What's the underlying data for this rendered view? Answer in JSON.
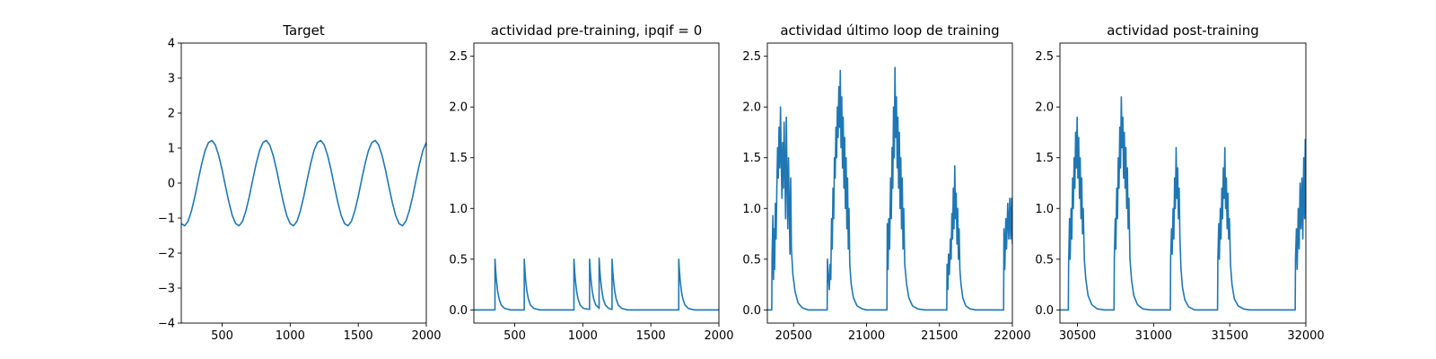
{
  "chart_data": [
    {
      "type": "line",
      "title": "Target",
      "color": "#1f77b4",
      "xlim": [
        200,
        2000
      ],
      "ylim": [
        -4,
        4
      ],
      "xticks": [
        500,
        1000,
        1500,
        2000
      ],
      "yticks": [
        {
          "value": -4,
          "label": "−4"
        },
        {
          "value": -3,
          "label": "−3"
        },
        {
          "value": -2,
          "label": "−2"
        },
        {
          "value": -1,
          "label": "−1"
        },
        0,
        1,
        2,
        3,
        4
      ],
      "x": [
        200,
        225,
        250,
        275,
        300,
        325,
        350,
        375,
        400,
        425,
        450,
        475,
        500,
        525,
        550,
        575,
        600,
        625,
        650,
        675,
        700,
        725,
        750,
        775,
        800,
        825,
        850,
        875,
        900,
        925,
        950,
        975,
        1000,
        1025,
        1050,
        1075,
        1100,
        1125,
        1150,
        1175,
        1200,
        1225,
        1250,
        1275,
        1300,
        1325,
        1350,
        1375,
        1400,
        1425,
        1450,
        1475,
        1500,
        1525,
        1550,
        1575,
        1600,
        1625,
        1650,
        1675,
        1700,
        1725,
        1750,
        1775,
        1800,
        1825,
        1850,
        1875,
        1900,
        1925,
        1950,
        1975,
        2000
      ],
      "values": [
        -1.16,
        -1.22,
        -1.09,
        -0.79,
        -0.38,
        0.1,
        0.55,
        0.93,
        1.16,
        1.22,
        1.09,
        0.79,
        0.38,
        -0.1,
        -0.55,
        -0.93,
        -1.16,
        -1.22,
        -1.09,
        -0.79,
        -0.38,
        0.1,
        0.55,
        0.93,
        1.16,
        1.22,
        1.09,
        0.79,
        0.38,
        -0.1,
        -0.55,
        -0.93,
        -1.16,
        -1.22,
        -1.09,
        -0.79,
        -0.38,
        0.1,
        0.55,
        0.93,
        1.16,
        1.22,
        1.09,
        0.79,
        0.38,
        -0.1,
        -0.55,
        -0.93,
        -1.16,
        -1.22,
        -1.09,
        -0.79,
        -0.38,
        0.1,
        0.55,
        0.93,
        1.16,
        1.22,
        1.09,
        0.79,
        0.38,
        -0.1,
        -0.55,
        -0.93,
        -1.16,
        -1.22,
        -1.09,
        -0.79,
        -0.38,
        0.1,
        0.55,
        0.93,
        1.16
      ]
    },
    {
      "type": "line",
      "title": "actividad pre-training, ipqif = 0",
      "color": "#1f77b4",
      "xlim": [
        200,
        2000
      ],
      "ylim": [
        -0.13,
        2.63
      ],
      "xticks": [
        500,
        1000,
        1500,
        2000
      ],
      "yticks": [
        {
          "value": 0,
          "label": "0.0"
        },
        0.5,
        {
          "value": 1,
          "label": "1.0"
        },
        1.5,
        {
          "value": 2,
          "label": "2.0"
        },
        2.5
      ],
      "x": [
        200,
        355,
        355,
        360,
        365,
        375,
        385,
        400,
        425,
        470,
        570,
        570,
        575,
        580,
        590,
        600,
        615,
        640,
        685,
        935,
        935,
        940,
        945,
        955,
        965,
        980,
        1005,
        1050,
        1050,
        1055,
        1060,
        1070,
        1080,
        1095,
        1120,
        1120,
        1125,
        1130,
        1140,
        1150,
        1165,
        1190,
        1215,
        1215,
        1220,
        1225,
        1235,
        1245,
        1260,
        1285,
        1330,
        1705,
        1705,
        1710,
        1715,
        1725,
        1735,
        1750,
        1775,
        1820,
        2000
      ],
      "values": [
        0,
        0,
        0.5,
        0.39,
        0.3,
        0.18,
        0.11,
        0.05,
        0.015,
        0,
        0,
        0.5,
        0.39,
        0.3,
        0.18,
        0.11,
        0.05,
        0.015,
        0,
        0,
        0.5,
        0.39,
        0.3,
        0.18,
        0.11,
        0.05,
        0.015,
        0.005,
        0.5,
        0.39,
        0.3,
        0.18,
        0.11,
        0.05,
        0.015,
        0.51,
        0.4,
        0.31,
        0.19,
        0.11,
        0.05,
        0.015,
        0.005,
        0.5,
        0.39,
        0.3,
        0.18,
        0.11,
        0.05,
        0.015,
        0,
        0,
        0.5,
        0.39,
        0.3,
        0.18,
        0.11,
        0.05,
        0.015,
        0,
        0
      ]
    },
    {
      "type": "line",
      "title": "actividad último loop de training",
      "color": "#1f77b4",
      "xlim": [
        20320,
        22000
      ],
      "ylim": [
        -0.13,
        2.63
      ],
      "xticks": [
        20500,
        21000,
        21500,
        22000
      ],
      "yticks": [
        {
          "value": 0,
          "label": "0.0"
        },
        0.5,
        {
          "value": 1,
          "label": "1.0"
        },
        1.5,
        {
          "value": 2,
          "label": "2.0"
        },
        2.5
      ],
      "x": [
        20320,
        20350,
        20352,
        20358,
        20362,
        20366,
        20370,
        20375,
        20380,
        20385,
        20390,
        20395,
        20400,
        20405,
        20410,
        20415,
        20420,
        20425,
        20430,
        20435,
        20440,
        20445,
        20450,
        20455,
        20460,
        20465,
        20470,
        20475,
        20480,
        20485,
        20495,
        20510,
        20530,
        20560,
        20600,
        20730,
        20732,
        20738,
        20745,
        20750,
        20755,
        20760,
        20765,
        20770,
        20775,
        20780,
        20785,
        20790,
        20795,
        20800,
        20805,
        20810,
        20815,
        20820,
        20825,
        20830,
        20835,
        20840,
        20845,
        20850,
        20855,
        20860,
        20865,
        20870,
        20875,
        20880,
        20885,
        20895,
        20910,
        20935,
        20970,
        21000,
        21140,
        21142,
        21148,
        21152,
        21158,
        21165,
        21170,
        21175,
        21180,
        21185,
        21190,
        21195,
        21200,
        21205,
        21210,
        21215,
        21220,
        21225,
        21230,
        21235,
        21240,
        21245,
        21250,
        21255,
        21262,
        21275,
        21290,
        21315,
        21350,
        21400,
        21550,
        21552,
        21558,
        21562,
        21568,
        21575,
        21580,
        21585,
        21590,
        21595,
        21600,
        21605,
        21610,
        21615,
        21620,
        21625,
        21630,
        21635,
        21640,
        21648,
        21660,
        21680,
        21710,
        21750,
        21940,
        21942,
        21948,
        21955,
        21960,
        21968,
        21975,
        21982,
        21988,
        21995,
        22000
      ],
      "values": [
        0,
        0,
        0.5,
        0.93,
        0.3,
        0.8,
        0.4,
        1.05,
        0.7,
        1.2,
        1.6,
        1.3,
        1.8,
        1.4,
        2.0,
        1.5,
        1.1,
        1.65,
        1.2,
        1.85,
        1.4,
        0.9,
        1.9,
        1.3,
        0.8,
        1.5,
        1.0,
        0.55,
        1.3,
        0.6,
        0.35,
        0.18,
        0.07,
        0.02,
        0,
        0,
        0.5,
        0.35,
        0.2,
        0.45,
        0.3,
        0.9,
        0.6,
        1.2,
        0.9,
        1.5,
        1.3,
        1.8,
        1.5,
        2.0,
        1.7,
        2.2,
        1.8,
        2.36,
        1.6,
        2.1,
        1.4,
        1.9,
        1.2,
        1.7,
        1.0,
        1.5,
        0.8,
        1.3,
        0.6,
        1.0,
        0.45,
        0.25,
        0.12,
        0.04,
        0.01,
        0,
        0,
        0.85,
        0.4,
        0.9,
        0.6,
        1.3,
        0.9,
        1.6,
        1.2,
        2.0,
        1.5,
        2.39,
        1.7,
        2.1,
        1.4,
        1.9,
        1.2,
        1.75,
        1.0,
        1.5,
        0.8,
        1.3,
        0.6,
        1.0,
        0.45,
        0.25,
        0.12,
        0.04,
        0.01,
        0,
        0,
        0.45,
        0.2,
        0.55,
        0.35,
        0.7,
        0.5,
        0.95,
        0.7,
        1.2,
        0.8,
        1.42,
        0.9,
        1.15,
        0.65,
        1.0,
        0.5,
        0.8,
        0.4,
        0.25,
        0.12,
        0.04,
        0.01,
        0,
        0,
        0.8,
        0.4,
        0.9,
        0.6,
        1.05,
        0.7,
        1.1,
        0.7,
        1.1,
        0.65
      ]
    },
    {
      "type": "line",
      "title": "actividad post-training",
      "color": "#1f77b4",
      "xlim": [
        30385,
        32000
      ],
      "ylim": [
        -0.13,
        2.63
      ],
      "xticks": [
        30500,
        31000,
        31500,
        32000
      ],
      "yticks": [
        {
          "value": 0,
          "label": "0.0"
        },
        0.5,
        {
          "value": 1,
          "label": "1.0"
        },
        1.5,
        {
          "value": 2,
          "label": "2.0"
        },
        2.5
      ],
      "x": [
        30385,
        30440,
        30442,
        30448,
        30452,
        30458,
        30463,
        30468,
        30473,
        30478,
        30483,
        30488,
        30493,
        30498,
        30503,
        30508,
        30513,
        30518,
        30523,
        30528,
        30533,
        30538,
        30545,
        30555,
        30570,
        30595,
        30630,
        30680,
        30740,
        30742,
        30748,
        30752,
        30758,
        30763,
        30768,
        30773,
        30778,
        30783,
        30788,
        30793,
        30798,
        30803,
        30808,
        30813,
        30818,
        30823,
        30828,
        30833,
        30838,
        30845,
        30855,
        30870,
        30895,
        30930,
        30980,
        31110,
        31112,
        31118,
        31122,
        31128,
        31133,
        31138,
        31143,
        31148,
        31153,
        31158,
        31163,
        31168,
        31173,
        31180,
        31190,
        31205,
        31230,
        31270,
        31420,
        31422,
        31428,
        31432,
        31438,
        31443,
        31448,
        31453,
        31458,
        31463,
        31468,
        31473,
        31478,
        31483,
        31488,
        31493,
        31498,
        31505,
        31515,
        31530,
        31555,
        31590,
        31630,
        31930,
        31932,
        31938,
        31943,
        31950,
        31956,
        31962,
        31968,
        31974,
        31980,
        31986,
        31992,
        31996,
        32000
      ],
      "values": [
        0,
        0,
        0.45,
        0.9,
        0.5,
        1.0,
        0.7,
        1.3,
        1.0,
        1.5,
        1.2,
        1.75,
        1.4,
        1.9,
        1.3,
        1.7,
        1.1,
        1.5,
        0.9,
        1.3,
        0.75,
        1.0,
        0.5,
        0.3,
        0.14,
        0.05,
        0.01,
        0,
        0,
        0.5,
        0.9,
        0.6,
        1.2,
        0.9,
        1.5,
        1.2,
        1.8,
        1.4,
        2.1,
        1.6,
        1.9,
        1.3,
        1.75,
        1.2,
        1.6,
        1.0,
        1.4,
        0.8,
        1.1,
        0.5,
        0.3,
        0.14,
        0.05,
        0.01,
        0,
        0,
        0.5,
        0.8,
        0.55,
        1.0,
        0.7,
        1.3,
        1.0,
        1.6,
        1.1,
        1.4,
        0.9,
        1.2,
        0.7,
        0.4,
        0.22,
        0.1,
        0.03,
        0,
        0,
        0.5,
        0.85,
        0.5,
        1.0,
        0.7,
        1.2,
        0.9,
        1.4,
        1.1,
        1.6,
        1.0,
        1.3,
        0.8,
        1.15,
        0.7,
        0.9,
        0.45,
        0.25,
        0.11,
        0.04,
        0.01,
        0,
        0,
        0.5,
        0.8,
        0.4,
        1.0,
        0.6,
        1.25,
        0.8,
        1.3,
        0.7,
        1.5,
        0.9,
        1.68,
        0.95
      ]
    }
  ]
}
